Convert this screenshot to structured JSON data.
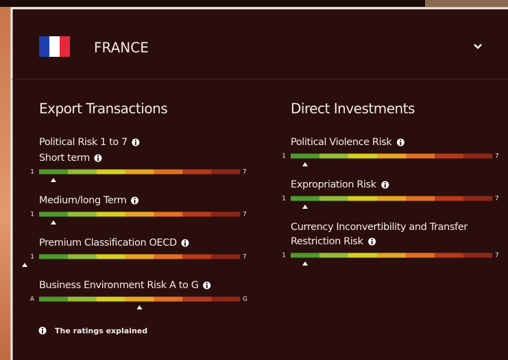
{
  "header": {
    "title": "FRANCE"
  },
  "columns": [
    {
      "title": "Export Transactions",
      "subtitle": "Political Risk 1 to 7",
      "gauges": [
        {
          "label": [
            "Short term"
          ],
          "min": "1",
          "max": "7",
          "rating": 1
        },
        {
          "label": [
            "Medium/long Term"
          ],
          "min": "1",
          "max": "7",
          "rating": 1
        },
        {
          "label": [
            "Premium Classification OECD"
          ],
          "min": "1",
          "max": "7",
          "rating": 0
        },
        {
          "label": [
            "Business Environment Risk A to G"
          ],
          "min": "A",
          "max": "G",
          "rating": 4
        }
      ]
    },
    {
      "title": "Direct Investments",
      "gauges": [
        {
          "label": [
            "Political Violence Risk"
          ],
          "min": "1",
          "max": "7",
          "rating": 1
        },
        {
          "label": [
            "Expropriation Risk"
          ],
          "min": "1",
          "max": "7",
          "rating": 1
        },
        {
          "label": [
            "Currency Inconvertibility and Transfer",
            "Restriction Risk"
          ],
          "min": "1",
          "max": "7",
          "rating": 1
        }
      ]
    }
  ],
  "footer": {
    "text": "The ratings explained"
  }
}
